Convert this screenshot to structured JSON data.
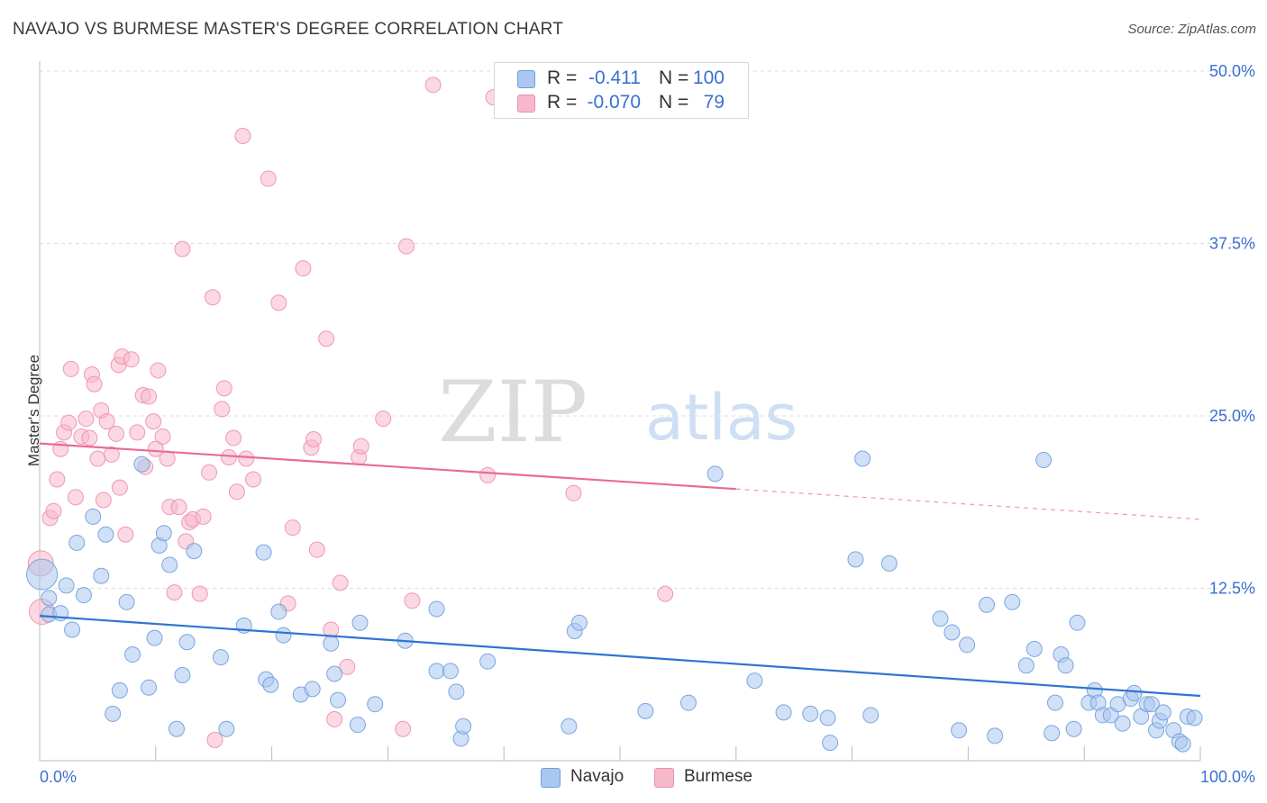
{
  "header": {
    "title": "NAVAJO VS BURMESE MASTER'S DEGREE CORRELATION CHART",
    "source": "Source: ZipAtlas.com"
  },
  "watermark": {
    "zip": "ZIP",
    "atlas": "atlas"
  },
  "legend": {
    "rows": [
      {
        "r_label": "R =",
        "r_value": "-0.411",
        "n_label": "N =",
        "n_value": "100",
        "color": "#a9c7ef"
      },
      {
        "r_label": "R =",
        "r_value": "-0.070",
        "n_label": "N =",
        "n_value": "79",
        "color": "#f7b8cb"
      }
    ]
  },
  "bottom_legend": [
    {
      "label": "Navajo",
      "color": "#a9c7ef"
    },
    {
      "label": "Burmese",
      "color": "#f7b8cb"
    }
  ],
  "colors": {
    "navajo_fill": "#a9c7ef",
    "navajo_stroke": "#6f9fdc",
    "navajo_line": "#2f74d0",
    "burmese_fill": "#f7b8cb",
    "burmese_stroke": "#ec90ad",
    "burmese_line": "#e86b97",
    "tick_label": "#3b6fd0",
    "grid": "#dddddd"
  },
  "chart_data": {
    "type": "scatter",
    "title": "NAVAJO VS BURMESE MASTER'S DEGREE CORRELATION CHART",
    "xlabel": "",
    "ylabel": "Master's Degree",
    "xlim": [
      0,
      100
    ],
    "ylim": [
      0,
      50
    ],
    "x_tick_labels": [
      "0.0%",
      "100.0%"
    ],
    "y_ticks": [
      12.5,
      25.0,
      37.5,
      50.0
    ],
    "y_tick_labels": [
      "12.5%",
      "25.0%",
      "37.5%",
      "50.0%"
    ],
    "grid": true,
    "series": [
      {
        "name": "Navajo",
        "r": -0.411,
        "n": 100,
        "trend": {
          "x": [
            0,
            100
          ],
          "y": [
            10.5,
            4.7
          ],
          "dashed_from": null
        },
        "points": [
          [
            0.2,
            13.5
          ],
          [
            0.8,
            11.8
          ],
          [
            0.8,
            10.6
          ],
          [
            1.8,
            10.7
          ],
          [
            2.3,
            12.7
          ],
          [
            2.8,
            9.5
          ],
          [
            3.2,
            15.8
          ],
          [
            3.8,
            12.0
          ],
          [
            4.6,
            17.7
          ],
          [
            5.3,
            13.4
          ],
          [
            5.7,
            16.4
          ],
          [
            6.3,
            3.4
          ],
          [
            6.9,
            5.1
          ],
          [
            7.5,
            11.5
          ],
          [
            8.0,
            7.7
          ],
          [
            8.8,
            21.5
          ],
          [
            9.4,
            5.3
          ],
          [
            9.9,
            8.9
          ],
          [
            10.3,
            15.6
          ],
          [
            10.7,
            16.5
          ],
          [
            11.2,
            14.2
          ],
          [
            11.8,
            2.3
          ],
          [
            12.3,
            6.2
          ],
          [
            12.7,
            8.6
          ],
          [
            13.3,
            15.2
          ],
          [
            15.6,
            7.5
          ],
          [
            16.1,
            2.3
          ],
          [
            17.6,
            9.8
          ],
          [
            19.3,
            15.1
          ],
          [
            19.5,
            5.9
          ],
          [
            19.9,
            5.5
          ],
          [
            20.6,
            10.8
          ],
          [
            21.0,
            9.1
          ],
          [
            22.5,
            4.8
          ],
          [
            23.5,
            5.2
          ],
          [
            25.1,
            8.5
          ],
          [
            25.4,
            6.3
          ],
          [
            25.7,
            4.4
          ],
          [
            27.4,
            2.6
          ],
          [
            27.6,
            10.0
          ],
          [
            28.9,
            4.1
          ],
          [
            31.5,
            8.7
          ],
          [
            34.2,
            11.0
          ],
          [
            34.2,
            6.5
          ],
          [
            35.4,
            6.5
          ],
          [
            35.9,
            5.0
          ],
          [
            36.3,
            1.6
          ],
          [
            36.5,
            2.5
          ],
          [
            38.6,
            7.2
          ],
          [
            45.6,
            2.5
          ],
          [
            46.1,
            9.4
          ],
          [
            46.5,
            10.0
          ],
          [
            52.2,
            3.6
          ],
          [
            55.9,
            4.2
          ],
          [
            58.2,
            20.8
          ],
          [
            61.6,
            5.8
          ],
          [
            64.1,
            3.5
          ],
          [
            66.4,
            3.4
          ],
          [
            67.9,
            3.1
          ],
          [
            68.1,
            1.3
          ],
          [
            70.3,
            14.6
          ],
          [
            70.9,
            21.9
          ],
          [
            71.6,
            3.3
          ],
          [
            73.2,
            14.3
          ],
          [
            77.6,
            10.3
          ],
          [
            78.6,
            9.3
          ],
          [
            79.2,
            2.2
          ],
          [
            79.9,
            8.4
          ],
          [
            81.6,
            11.3
          ],
          [
            82.3,
            1.8
          ],
          [
            83.8,
            11.5
          ],
          [
            85.0,
            6.9
          ],
          [
            85.7,
            8.1
          ],
          [
            86.5,
            21.8
          ],
          [
            87.2,
            2.0
          ],
          [
            87.5,
            4.2
          ],
          [
            88.0,
            7.7
          ],
          [
            88.4,
            6.9
          ],
          [
            89.1,
            2.3
          ],
          [
            89.4,
            10.0
          ],
          [
            90.4,
            4.2
          ],
          [
            90.9,
            5.1
          ],
          [
            91.2,
            4.2
          ],
          [
            91.6,
            3.3
          ],
          [
            92.3,
            3.3
          ],
          [
            92.9,
            4.1
          ],
          [
            93.3,
            2.7
          ],
          [
            94.0,
            4.5
          ],
          [
            94.3,
            4.9
          ],
          [
            94.9,
            3.2
          ],
          [
            95.4,
            4.1
          ],
          [
            95.8,
            4.1
          ],
          [
            96.2,
            2.2
          ],
          [
            96.5,
            2.9
          ],
          [
            96.8,
            3.5
          ],
          [
            97.7,
            2.2
          ],
          [
            98.2,
            1.4
          ],
          [
            98.5,
            1.2
          ],
          [
            98.9,
            3.2
          ],
          [
            99.5,
            3.1
          ]
        ]
      },
      {
        "name": "Burmese",
        "r": -0.07,
        "n": 79,
        "trend": {
          "x": [
            0,
            100
          ],
          "y": [
            23.0,
            17.5
          ],
          "dashed_from": 60
        },
        "points": [
          [
            0.1,
            14.3
          ],
          [
            0.2,
            10.8
          ],
          [
            0.9,
            17.6
          ],
          [
            1.2,
            18.1
          ],
          [
            1.5,
            20.4
          ],
          [
            1.8,
            22.6
          ],
          [
            2.1,
            23.8
          ],
          [
            2.5,
            24.5
          ],
          [
            2.7,
            28.4
          ],
          [
            3.1,
            19.1
          ],
          [
            3.6,
            23.5
          ],
          [
            4.0,
            24.8
          ],
          [
            4.3,
            23.4
          ],
          [
            4.5,
            28.0
          ],
          [
            4.7,
            27.3
          ],
          [
            5.0,
            21.9
          ],
          [
            5.3,
            25.4
          ],
          [
            5.5,
            18.9
          ],
          [
            5.8,
            24.6
          ],
          [
            6.2,
            22.2
          ],
          [
            6.6,
            23.7
          ],
          [
            6.8,
            28.7
          ],
          [
            7.1,
            29.3
          ],
          [
            7.4,
            16.4
          ],
          [
            7.9,
            29.1
          ],
          [
            8.4,
            23.8
          ],
          [
            8.9,
            26.5
          ],
          [
            9.1,
            21.3
          ],
          [
            9.4,
            26.4
          ],
          [
            9.8,
            24.6
          ],
          [
            10.2,
            28.3
          ],
          [
            10.6,
            23.5
          ],
          [
            11.0,
            21.9
          ],
          [
            11.2,
            18.4
          ],
          [
            11.6,
            12.2
          ],
          [
            12.0,
            18.4
          ],
          [
            12.3,
            37.1
          ],
          [
            12.6,
            15.9
          ],
          [
            12.9,
            17.3
          ],
          [
            13.2,
            17.5
          ],
          [
            13.8,
            12.1
          ],
          [
            14.1,
            17.7
          ],
          [
            14.6,
            20.9
          ],
          [
            14.9,
            33.6
          ],
          [
            15.1,
            1.5
          ],
          [
            15.7,
            25.5
          ],
          [
            15.9,
            27.0
          ],
          [
            16.3,
            22.0
          ],
          [
            16.7,
            23.4
          ],
          [
            17.5,
            45.3
          ],
          [
            17.8,
            21.9
          ],
          [
            18.4,
            20.4
          ],
          [
            19.7,
            42.2
          ],
          [
            20.6,
            33.2
          ],
          [
            21.4,
            11.4
          ],
          [
            21.8,
            16.9
          ],
          [
            22.7,
            35.7
          ],
          [
            23.4,
            22.7
          ],
          [
            23.6,
            23.3
          ],
          [
            23.9,
            15.3
          ],
          [
            24.7,
            30.6
          ],
          [
            25.1,
            9.5
          ],
          [
            25.4,
            3.0
          ],
          [
            25.9,
            12.9
          ],
          [
            26.5,
            6.8
          ],
          [
            27.5,
            22.0
          ],
          [
            27.7,
            22.8
          ],
          [
            29.6,
            24.8
          ],
          [
            31.3,
            2.3
          ],
          [
            31.6,
            37.3
          ],
          [
            32.1,
            11.6
          ],
          [
            38.6,
            20.7
          ],
          [
            39.1,
            48.1
          ],
          [
            46.0,
            19.4
          ],
          [
            53.9,
            12.1
          ],
          [
            33.9,
            49.0
          ],
          [
            6.9,
            19.8
          ],
          [
            10.0,
            22.6
          ],
          [
            17.0,
            19.5
          ]
        ]
      }
    ]
  }
}
